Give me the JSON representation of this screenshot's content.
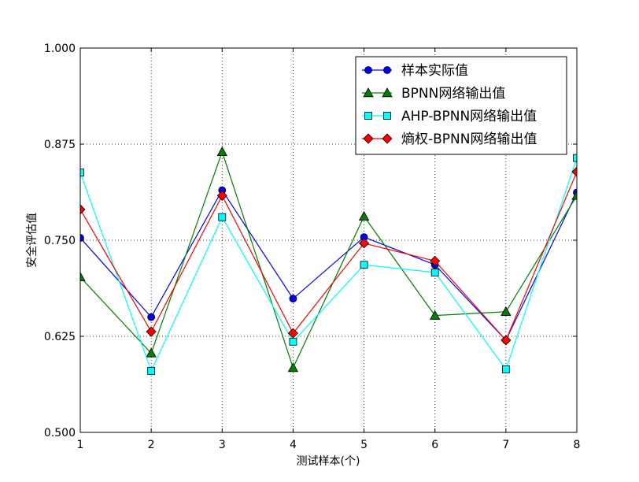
{
  "chart_data": {
    "type": "line",
    "xlabel": "测试样本(个)",
    "ylabel": "安全评估值",
    "x": [
      1,
      2,
      3,
      4,
      5,
      6,
      7,
      8
    ],
    "xlim": [
      1,
      8
    ],
    "ylim": [
      0.5,
      1.0
    ],
    "xticks": [
      "1",
      "2",
      "3",
      "4",
      "5",
      "6",
      "7",
      "8"
    ],
    "yticks": [
      "0.500",
      "0.625",
      "0.750",
      "0.875",
      "1.000"
    ],
    "ytick_values": [
      0.5,
      0.625,
      0.75,
      0.875,
      1.0
    ],
    "grid": true,
    "legend_position": "top-right",
    "series": [
      {
        "name": "样本实际值",
        "color": "#0000ff",
        "marker": "circle",
        "values": [
          0.753,
          0.65,
          0.815,
          0.674,
          0.754,
          0.718,
          0.62,
          0.812
        ]
      },
      {
        "name": "BPNN网络输出值",
        "color": "#007f00",
        "marker": "triangle",
        "values": [
          0.702,
          0.603,
          0.865,
          0.584,
          0.781,
          0.652,
          0.657,
          0.808
        ]
      },
      {
        "name": "AHP-BPNN网络输出值",
        "color": "#00ffff",
        "marker": "square",
        "values": [
          0.838,
          0.58,
          0.78,
          0.618,
          0.718,
          0.708,
          0.582,
          0.857
        ]
      },
      {
        "name": "熵权-BPNN网络输出值",
        "color": "#ff0000",
        "marker": "diamond",
        "values": [
          0.79,
          0.631,
          0.808,
          0.629,
          0.746,
          0.723,
          0.62,
          0.839
        ]
      }
    ]
  }
}
